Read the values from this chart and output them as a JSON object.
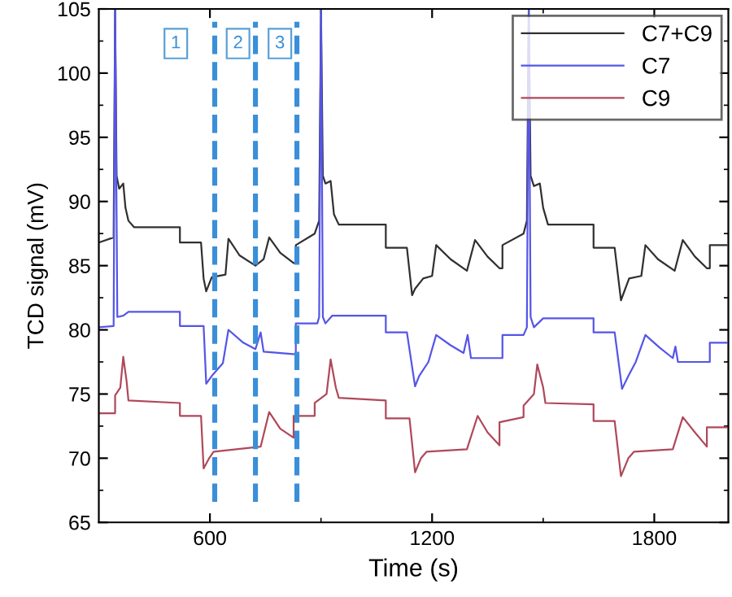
{
  "chart_data": {
    "type": "line",
    "xlabel": "Time (s)",
    "ylabel": "TCD signal (mV)",
    "xlim": [
      300,
      2000
    ],
    "ylim": [
      65,
      105
    ],
    "xticks": [
      600,
      1200,
      1800
    ],
    "yticks": [
      65,
      70,
      75,
      80,
      85,
      90,
      95,
      100,
      105
    ],
    "grid": false,
    "legend": "top right",
    "line_style": "solid",
    "marker": "none",
    "series": [
      {
        "name": "C7+C9",
        "color": "#303030",
        "x": [
          300,
          340,
          344,
          348,
          355,
          366,
          372,
          380,
          395,
          519,
          519,
          576,
          583,
          590,
          605,
          642,
          650,
          680,
          723,
          745,
          760,
          790,
          826,
          832,
          832,
          883,
          895,
          900,
          905,
          912,
          926,
          935,
          948,
          1075,
          1075,
          1132,
          1146,
          1154,
          1176,
          1200,
          1211,
          1250,
          1294,
          1316,
          1350,
          1382,
          1390,
          1390,
          1447,
          1456,
          1461,
          1466,
          1475,
          1491,
          1500,
          1513,
          1636,
          1636,
          1693,
          1710,
          1732,
          1765,
          1776,
          1810,
          1855,
          1877,
          1910,
          1942,
          1950,
          1950,
          1995
        ],
        "values": [
          86.8,
          87.2,
          105,
          92,
          91.0,
          91.4,
          89.5,
          88.5,
          88.0,
          88.0,
          86.8,
          86.8,
          84.0,
          83.0,
          84.1,
          84.3,
          87.1,
          85.8,
          85.0,
          85.5,
          87.2,
          86.0,
          85.2,
          85.2,
          86.6,
          87.5,
          88.5,
          105,
          92,
          91.4,
          91.6,
          89,
          88.2,
          88.2,
          86.4,
          86.4,
          82.7,
          83.2,
          84.0,
          84.2,
          86.6,
          85.5,
          84.6,
          87.0,
          85.7,
          84.8,
          84.8,
          86.6,
          87.5,
          88.5,
          105,
          92,
          91.2,
          91.4,
          89.5,
          88.2,
          88.2,
          86.4,
          86.4,
          82.3,
          84.0,
          84.2,
          86.6,
          85.5,
          84.6,
          87.0,
          85.7,
          84.8,
          84.8,
          86.6,
          86.6
        ]
      },
      {
        "name": "C7",
        "color": "#5555e8",
        "x": [
          300,
          340,
          344,
          350,
          366,
          380,
          519,
          519,
          583,
          590,
          605,
          635,
          650,
          690,
          723,
          737,
          745,
          832,
          832,
          890,
          895,
          900,
          905,
          912,
          930,
          1075,
          1075,
          1132,
          1154,
          1165,
          1190,
          1211,
          1250,
          1285,
          1296,
          1305,
          1390,
          1390,
          1447,
          1456,
          1461,
          1466,
          1475,
          1500,
          1636,
          1636,
          1693,
          1713,
          1730,
          1750,
          1776,
          1815,
          1850,
          1857,
          1864,
          1950,
          1950,
          1995
        ],
        "values": [
          80.2,
          80.3,
          105,
          81.0,
          81.1,
          81.4,
          81.4,
          80.3,
          80.3,
          75.8,
          76.4,
          77.4,
          80.0,
          79.0,
          78.5,
          79.8,
          78.3,
          78.1,
          80.5,
          80.5,
          81,
          105,
          81,
          80.5,
          81.1,
          81.1,
          79.8,
          79.8,
          75.6,
          76.4,
          77.5,
          79.6,
          78.8,
          78.2,
          79.6,
          77.8,
          77.8,
          79.6,
          79.6,
          80.2,
          105,
          81,
          80.2,
          80.9,
          80.9,
          79.8,
          79.8,
          75.4,
          76.4,
          77.5,
          79.6,
          78.6,
          77.8,
          78.7,
          77.5,
          77.5,
          79.0,
          79.0
        ]
      },
      {
        "name": "C9",
        "color": "#b0485a",
        "x": [
          300,
          344,
          344,
          358,
          366,
          375,
          380,
          519,
          519,
          576,
          583,
          598,
          610,
          737,
          760,
          790,
          826,
          826,
          883,
          883,
          915,
          926,
          940,
          948,
          1075,
          1075,
          1139,
          1154,
          1170,
          1185,
          1294,
          1323,
          1350,
          1382,
          1382,
          1447,
          1447,
          1475,
          1484,
          1500,
          1506,
          1636,
          1636,
          1693,
          1710,
          1730,
          1745,
          1850,
          1877,
          1910,
          1942,
          1942,
          1995
        ],
        "values": [
          73.5,
          73.5,
          74.9,
          75.5,
          77.9,
          76,
          74.5,
          74.3,
          73.3,
          73.3,
          69.2,
          70.0,
          70.5,
          70.9,
          73.6,
          72.3,
          71.6,
          73.3,
          73.3,
          74.3,
          75,
          77.7,
          75.5,
          74.7,
          74.5,
          73.1,
          73.1,
          68.9,
          70.0,
          70.5,
          70.7,
          73.3,
          72.0,
          71.0,
          72.8,
          73.2,
          74.1,
          75,
          77.3,
          75.5,
          74.3,
          74.2,
          72.9,
          72.9,
          68.6,
          70.0,
          70.5,
          70.7,
          73.2,
          72.0,
          70.9,
          72.4,
          72.4
        ]
      }
    ],
    "ref_lines": [
      {
        "axis": "x",
        "value": 613,
        "color": "#3a8fd8",
        "line_style": "dashed"
      },
      {
        "axis": "x",
        "value": 723,
        "color": "#3a8fd8",
        "line_style": "dashed"
      },
      {
        "axis": "x",
        "value": 835,
        "color": "#3a8fd8",
        "line_style": "dashed"
      }
    ],
    "annotations": [
      {
        "text": "1",
        "x": 508,
        "y": 102.3
      },
      {
        "text": "2",
        "x": 676,
        "y": 102.3
      },
      {
        "text": "3",
        "x": 789,
        "y": 102.3
      }
    ]
  }
}
